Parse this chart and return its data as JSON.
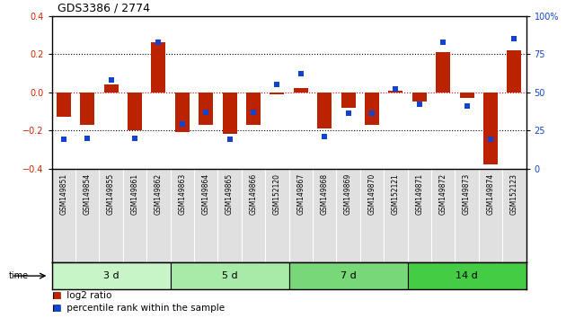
{
  "title": "GDS3386 / 2774",
  "samples": [
    "GSM149851",
    "GSM149854",
    "GSM149855",
    "GSM149861",
    "GSM149862",
    "GSM149863",
    "GSM149864",
    "GSM149865",
    "GSM149866",
    "GSM152120",
    "GSM149867",
    "GSM149868",
    "GSM149869",
    "GSM149870",
    "GSM152121",
    "GSM149871",
    "GSM149872",
    "GSM149873",
    "GSM149874",
    "GSM152123"
  ],
  "log2_ratio": [
    -0.13,
    -0.17,
    0.04,
    -0.2,
    0.26,
    -0.21,
    -0.17,
    -0.22,
    -0.17,
    -0.01,
    0.02,
    -0.19,
    -0.08,
    -0.17,
    0.01,
    -0.05,
    0.21,
    -0.03,
    -0.38,
    0.22
  ],
  "percentile": [
    19,
    20,
    58,
    20,
    83,
    29,
    37,
    19,
    37,
    55,
    62,
    21,
    36,
    36,
    52,
    42,
    83,
    41,
    19,
    85
  ],
  "groups": [
    {
      "label": "3 d",
      "start": 0,
      "end": 5,
      "color": "#c8f5c8"
    },
    {
      "label": "5 d",
      "start": 5,
      "end": 10,
      "color": "#a8eaa8"
    },
    {
      "label": "7 d",
      "start": 10,
      "end": 15,
      "color": "#78d878"
    },
    {
      "label": "14 d",
      "start": 15,
      "end": 20,
      "color": "#44cc44"
    }
  ],
  "bar_color_red": "#bb2200",
  "dot_color_blue": "#1144cc",
  "ylim_left": [
    -0.4,
    0.4
  ],
  "yticks_left": [
    -0.4,
    -0.2,
    0.0,
    0.2,
    0.4
  ],
  "yticks_right": [
    0,
    25,
    50,
    75,
    100
  ],
  "label_bg": "#e0e0e0"
}
